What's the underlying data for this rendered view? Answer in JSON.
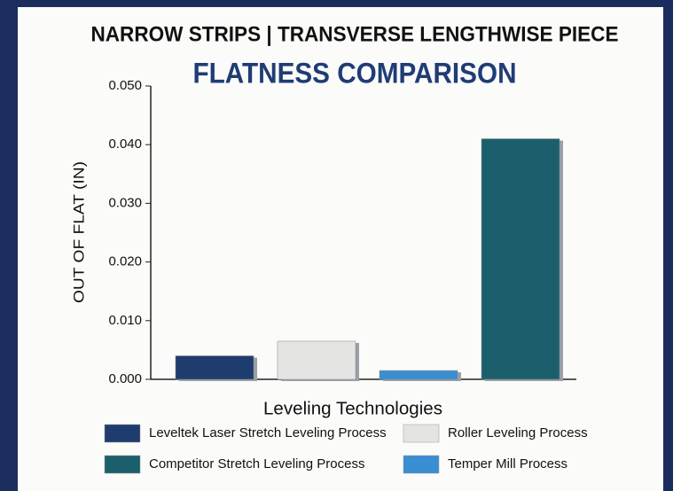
{
  "chart_data": {
    "type": "bar",
    "title": "NARROW STRIPS | TRANSVERSE LENGTHWISE PIECE",
    "subtitle": "FLATNESS COMPARISON",
    "y_label": "OUT OF FLAT (IN)",
    "x_label": "Leveling Technologies",
    "categories": [
      "Leveltek Laser Stretch Leveling Process",
      "Roller Leveling Process",
      "Temper Mill Process",
      "Competitor Stretch Leveling Process"
    ],
    "values": [
      0.004,
      0.0065,
      0.0015,
      0.041
    ],
    "colors": [
      "#1f3c6e",
      "#e4e4e2",
      "#3a8ed2",
      "#1c5f6c"
    ],
    "ylim": [
      0,
      0.05
    ],
    "yticks": [
      {
        "value": 0,
        "label": "0.000"
      },
      {
        "value": 0.01,
        "label": "0.010"
      },
      {
        "value": 0.02,
        "label": "0.020"
      },
      {
        "value": 0.03,
        "label": "0.030"
      },
      {
        "value": 0.04,
        "label": "0.040"
      },
      {
        "value": 0.05,
        "label": "0.050"
      }
    ]
  }
}
